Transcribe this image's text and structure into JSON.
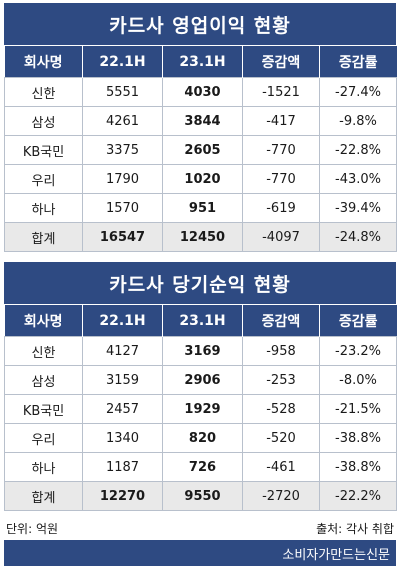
{
  "colors": {
    "header_bg": "#2e4a82",
    "total_row_bg": "#e9e9e9"
  },
  "tables": [
    {
      "title": "카드사 영업이익 현황",
      "headers": [
        "회사명",
        "22.1H",
        "23.1H",
        "증감액",
        "증감률"
      ],
      "rows": [
        [
          "신한",
          "5551",
          "4030",
          "-1521",
          "-27.4%"
        ],
        [
          "삼성",
          "4261",
          "3844",
          "-417",
          "-9.8%"
        ],
        [
          "KB국민",
          "3375",
          "2605",
          "-770",
          "-22.8%"
        ],
        [
          "우리",
          "1790",
          "1020",
          "-770",
          "-43.0%"
        ],
        [
          "하나",
          "1570",
          "951",
          "-619",
          "-39.4%"
        ]
      ],
      "total": [
        "합계",
        "16547",
        "12450",
        "-4097",
        "-24.8%"
      ]
    },
    {
      "title": "카드사 당기순익 현황",
      "headers": [
        "회사명",
        "22.1H",
        "23.1H",
        "증감액",
        "증감률"
      ],
      "rows": [
        [
          "신한",
          "4127",
          "3169",
          "-958",
          "-23.2%"
        ],
        [
          "삼성",
          "3159",
          "2906",
          "-253",
          "-8.0%"
        ],
        [
          "KB국민",
          "2457",
          "1929",
          "-528",
          "-21.5%"
        ],
        [
          "우리",
          "1340",
          "820",
          "-520",
          "-38.8%"
        ],
        [
          "하나",
          "1187",
          "726",
          "-461",
          "-38.8%"
        ]
      ],
      "total": [
        "합계",
        "12270",
        "9550",
        "-2720",
        "-22.2%"
      ]
    }
  ],
  "footer": {
    "unit": "단위: 억원",
    "source": "출처: 각사 취합"
  },
  "brand": "소비자가만드는신문"
}
